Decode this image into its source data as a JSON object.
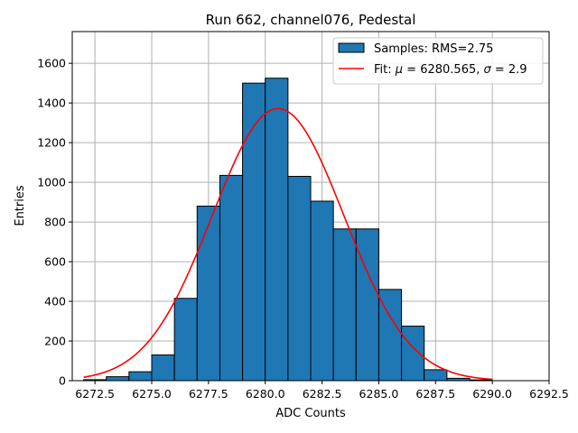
{
  "chart_data": {
    "type": "bar",
    "title": "Run 662, channel076, Pedestal",
    "xlabel": "ADC Counts",
    "ylabel": "Entries",
    "xlim": [
      6271.5,
      6292.5
    ],
    "ylim": [
      0,
      1760
    ],
    "xticks": [
      6272.5,
      6275.0,
      6277.5,
      6280.0,
      6282.5,
      6285.0,
      6287.5,
      6290.0,
      6292.5
    ],
    "xtick_labels": [
      "6272.5",
      "6275.0",
      "6277.5",
      "6280.0",
      "6282.5",
      "6285.0",
      "6287.5",
      "6290.0",
      "6292.5"
    ],
    "yticks": [
      0,
      200,
      400,
      600,
      800,
      1000,
      1200,
      1400,
      1600
    ],
    "ytick_labels": [
      "0",
      "200",
      "400",
      "600",
      "800",
      "1000",
      "1200",
      "1400",
      "1600"
    ],
    "grid": true,
    "legend_position": "top-right",
    "histogram": {
      "name": "Samples: RMS=2.75",
      "color": "#1f77b4",
      "edge_color": "#000000",
      "bins": [
        {
          "x0": 6272,
          "x1": 6273,
          "value": 5
        },
        {
          "x0": 6273,
          "x1": 6274,
          "value": 20
        },
        {
          "x0": 6274,
          "x1": 6275,
          "value": 45
        },
        {
          "x0": 6275,
          "x1": 6276,
          "value": 130
        },
        {
          "x0": 6276,
          "x1": 6277,
          "value": 415
        },
        {
          "x0": 6277,
          "x1": 6278,
          "value": 880
        },
        {
          "x0": 6278,
          "x1": 6279,
          "value": 1035
        },
        {
          "x0": 6279,
          "x1": 6280,
          "value": 1500
        },
        {
          "x0": 6280,
          "x1": 6281,
          "value": 1525
        },
        {
          "x0": 6281,
          "x1": 6282,
          "value": 1030
        },
        {
          "x0": 6282,
          "x1": 6283,
          "value": 905
        },
        {
          "x0": 6283,
          "x1": 6284,
          "value": 765
        },
        {
          "x0": 6284,
          "x1": 6285,
          "value": 765
        },
        {
          "x0": 6285,
          "x1": 6286,
          "value": 460
        },
        {
          "x0": 6286,
          "x1": 6287,
          "value": 275
        },
        {
          "x0": 6287,
          "x1": 6288,
          "value": 55
        },
        {
          "x0": 6288,
          "x1": 6289,
          "value": 12
        },
        {
          "x0": 6289,
          "x1": 6290,
          "value": 4
        }
      ]
    },
    "fit": {
      "name_prefix": "Fit: ",
      "name_mu_symbol": "μ",
      "name_mid": " = 6280.565, ",
      "name_sigma_symbol": "σ",
      "name_end": " = 2.9",
      "color": "#ff0000",
      "mu": 6280.565,
      "sigma": 2.9,
      "amplitude": 1372,
      "x_range": [
        6272,
        6290
      ]
    }
  }
}
